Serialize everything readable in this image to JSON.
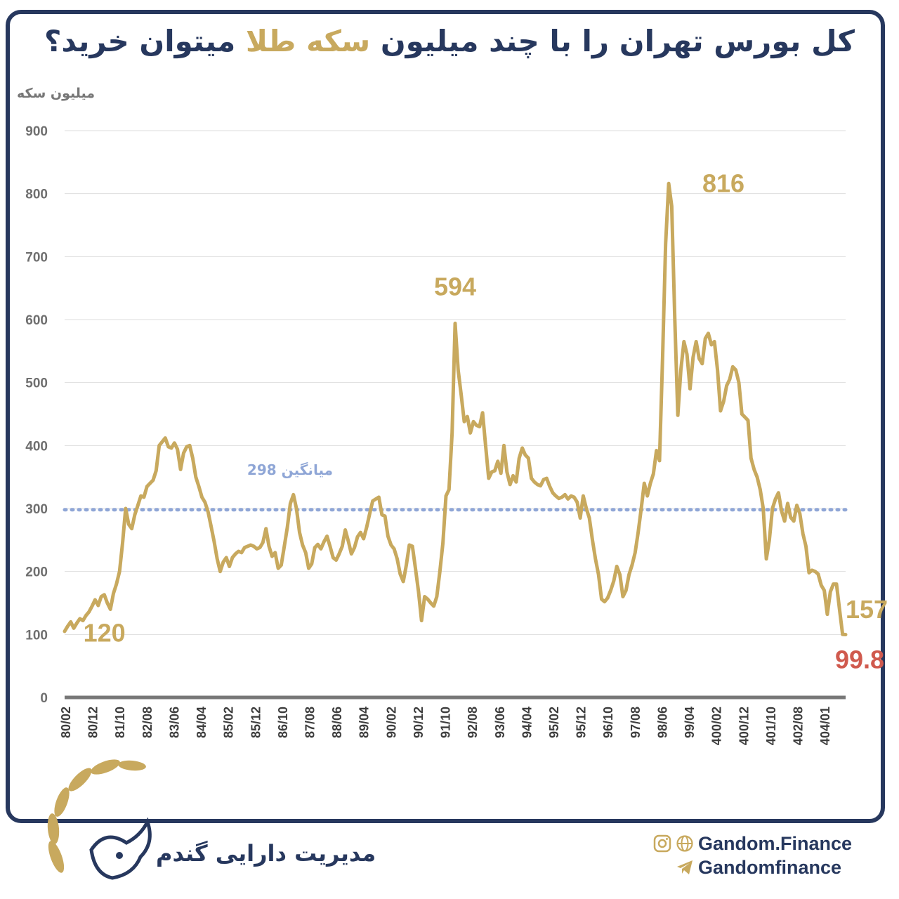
{
  "title": {
    "part1": "کل بورس تهران را با چند میلیون ",
    "accent": "سکه طلا",
    "part2": " میتوان خرید؟"
  },
  "colors": {
    "frame": "#27385e",
    "line": "#c8a95e",
    "average": "#8fa6d6",
    "last_value": "#d05a4e",
    "axis": "#777777"
  },
  "chart_data": {
    "type": "line",
    "title": "کل بورس تهران را با چند میلیون سکه طلا میتوان خرید؟",
    "ylabel": "میلیون سکه",
    "xlabel": "",
    "ylim": [
      0,
      900
    ],
    "yticks": [
      0,
      100,
      200,
      300,
      400,
      500,
      600,
      700,
      800,
      900
    ],
    "x_ticks": [
      "80/02",
      "80/12",
      "81/10",
      "82/08",
      "83/06",
      "84/04",
      "85/02",
      "85/12",
      "86/10",
      "87/08",
      "88/06",
      "89/04",
      "90/02",
      "90/12",
      "91/10",
      "92/08",
      "93/06",
      "94/04",
      "95/02",
      "95/12",
      "96/10",
      "97/08",
      "98/06",
      "99/04",
      "400/02",
      "400/12",
      "401/10",
      "402/08",
      "404/01"
    ],
    "grid": true,
    "series": [
      {
        "values": [
          105,
          113,
          120,
          110,
          118,
          125,
          122,
          130,
          136,
          145,
          155,
          146,
          160,
          163,
          150,
          140,
          165,
          180,
          200,
          245,
          300,
          275,
          268,
          290,
          305,
          320,
          318,
          335,
          340,
          345,
          360,
          400,
          406,
          412,
          398,
          396,
          404,
          394,
          362,
          388,
          398,
          400,
          380,
          350,
          335,
          318,
          310,
          295,
          272,
          248,
          220,
          200,
          215,
          222,
          208,
          222,
          228,
          232,
          230,
          238,
          240,
          242,
          240,
          236,
          238,
          246,
          268,
          240,
          224,
          230,
          205,
          210,
          240,
          270,
          308,
          322,
          300,
          262,
          242,
          230,
          205,
          212,
          238,
          243,
          236,
          247,
          256,
          240,
          222,
          218,
          228,
          240,
          266,
          248,
          228,
          238,
          255,
          262,
          252,
          270,
          292,
          312,
          315,
          318,
          290,
          288,
          256,
          242,
          236,
          220,
          196,
          184,
          210,
          242,
          240,
          205,
          168,
          122,
          160,
          156,
          150,
          145,
          160,
          200,
          245,
          320,
          330,
          420,
          594,
          520,
          480,
          438,
          446,
          420,
          438,
          432,
          430,
          452,
          400,
          348,
          358,
          360,
          375,
          356,
          400,
          358,
          338,
          352,
          342,
          380,
          396,
          385,
          380,
          348,
          342,
          338,
          336,
          346,
          348,
          335,
          325,
          320,
          316,
          318,
          322,
          315,
          320,
          318,
          310,
          285,
          320,
          300,
          285,
          250,
          220,
          195,
          156,
          152,
          158,
          170,
          185,
          208,
          195,
          160,
          170,
          195,
          210,
          230,
          262,
          300,
          340,
          320,
          340,
          355,
          392,
          376,
          540,
          720,
          816,
          780,
          600,
          448,
          520,
          565,
          545,
          490,
          540,
          565,
          538,
          530,
          570,
          578,
          560,
          565,
          520,
          455,
          470,
          495,
          505,
          525,
          520,
          500,
          450,
          445,
          440,
          380,
          362,
          350,
          330,
          300,
          220,
          250,
          300,
          315,
          325,
          296,
          280,
          308,
          286,
          280,
          305,
          292,
          260,
          240,
          198,
          202,
          200,
          196,
          178,
          170,
          132,
          168,
          180,
          180,
          140,
          100,
          99.8
        ]
      }
    ],
    "average": {
      "value": 298,
      "label": "میانگین 298"
    },
    "annotations": [
      {
        "label": "816",
        "value": 816
      },
      {
        "label": "594",
        "value": 594
      },
      {
        "label": "120",
        "value": 120
      },
      {
        "label": "157",
        "value": 157
      },
      {
        "label": "99.8",
        "value": 99.8
      }
    ]
  },
  "brand": {
    "name": "مدیریت دارایی گندم",
    "website": "Gandom.Finance",
    "telegram": "Gandomfinance"
  }
}
